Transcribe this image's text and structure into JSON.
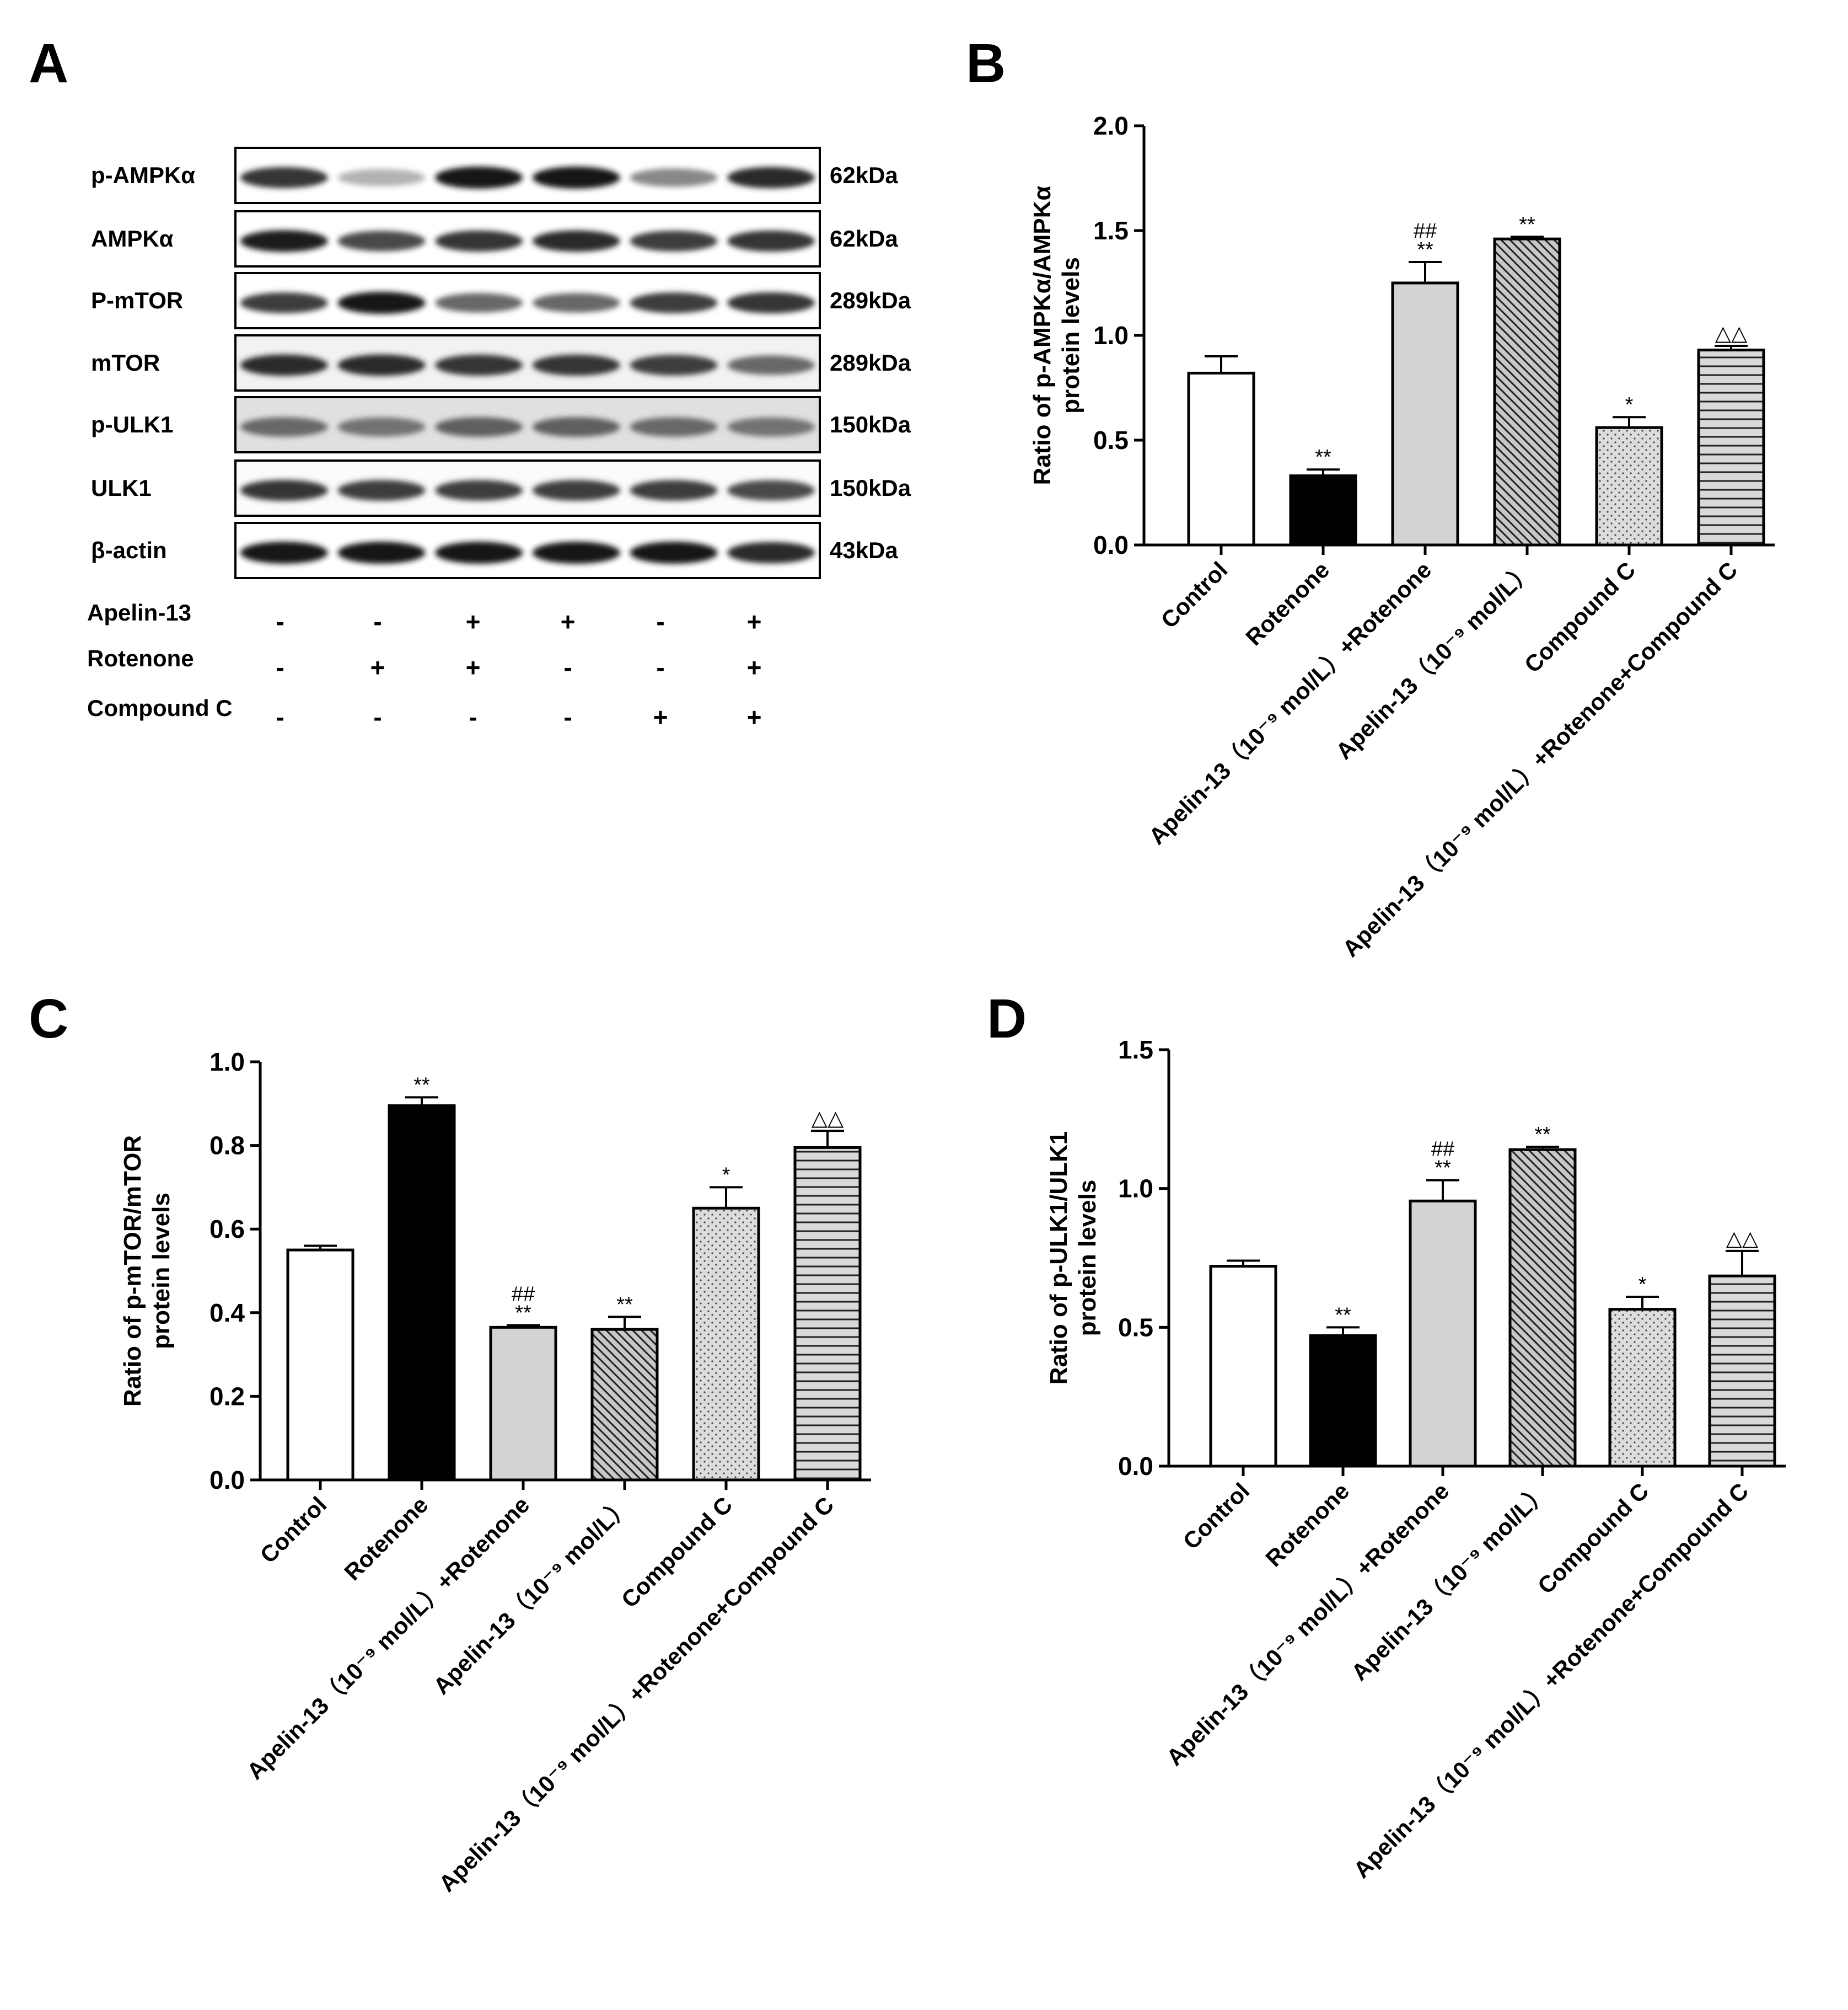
{
  "panels": {
    "a": "A",
    "b": "B",
    "c": "C",
    "d": "D"
  },
  "blot": {
    "rows": [
      {
        "label": "p-AMPKα",
        "size": "62kDa",
        "intensity": [
          0.85,
          0.25,
          1.0,
          1.0,
          0.45,
          0.9
        ],
        "bg": 0.0
      },
      {
        "label": "AMPKα",
        "size": "62kDa",
        "intensity": [
          0.95,
          0.75,
          0.85,
          0.9,
          0.8,
          0.85
        ],
        "bg": 0.0
      },
      {
        "label": "P-mTOR",
        "size": "289kDa",
        "intensity": [
          0.8,
          1.0,
          0.6,
          0.6,
          0.8,
          0.85
        ],
        "bg": 0.0
      },
      {
        "label": "mTOR",
        "size": "289kDa",
        "intensity": [
          0.9,
          0.9,
          0.85,
          0.85,
          0.8,
          0.6
        ],
        "bg": 0.15
      },
      {
        "label": "p-ULK1",
        "size": "150kDa",
        "intensity": [
          0.6,
          0.55,
          0.65,
          0.65,
          0.6,
          0.55
        ],
        "bg": 0.35
      },
      {
        "label": "ULK1",
        "size": "150kDa",
        "intensity": [
          0.85,
          0.8,
          0.8,
          0.8,
          0.8,
          0.75
        ],
        "bg": 0.05
      },
      {
        "label": "β-actin",
        "size": "43kDa",
        "intensity": [
          1.0,
          1.0,
          1.0,
          1.0,
          1.0,
          0.9
        ],
        "bg": 0.0
      }
    ],
    "conditions": [
      {
        "label": "Apelin-13",
        "signs": [
          "-",
          "-",
          "+",
          "+",
          "-",
          "+"
        ]
      },
      {
        "label": "Rotenone",
        "signs": [
          "-",
          "+",
          "+",
          "-",
          "-",
          "+"
        ]
      },
      {
        "label": "Compound C",
        "signs": [
          "-",
          "-",
          "-",
          "-",
          "+",
          "+"
        ]
      }
    ]
  },
  "chart_data": [
    {
      "id": "B",
      "type": "bar",
      "ylabel": [
        "Ratio of p-AMPKα/AMPKα",
        "protein levels"
      ],
      "ylim": [
        0,
        2.0
      ],
      "yticks": [
        "0.0",
        "0.5",
        "1.0",
        "1.5",
        "2.0"
      ],
      "categories": [
        "Control",
        "Rotenone",
        "Apelin-13（10⁻⁹ mol/L）+Rotenone",
        "Apelin-13（10⁻⁹ mol/L）",
        "Compound C",
        "Apelin-13（10⁻⁹ mol/L）+Rotenone+Compound C"
      ],
      "values": [
        0.82,
        0.33,
        1.25,
        1.46,
        0.56,
        0.93
      ],
      "errors": [
        0.08,
        0.03,
        0.1,
        0.01,
        0.05,
        0.02
      ],
      "marks": [
        [],
        [
          "**"
        ],
        [
          "##",
          "**"
        ],
        [
          "**"
        ],
        [
          "*"
        ],
        [
          "△△"
        ]
      ],
      "fills": [
        "white",
        "black",
        "gray",
        "hatch",
        "dots",
        "hlines"
      ]
    },
    {
      "id": "C",
      "type": "bar",
      "ylabel": [
        "Ratio of p-mTOR/mTOR",
        "protein levels"
      ],
      "ylim": [
        0,
        1.0
      ],
      "yticks": [
        "0.0",
        "0.2",
        "0.4",
        "0.6",
        "0.8",
        "1.0"
      ],
      "categories": [
        "Control",
        "Rotenone",
        "Apelin-13（10⁻⁹ mol/L）+Rotenone",
        "Apelin-13（10⁻⁹ mol/L）",
        "Compound C",
        "Apelin-13（10⁻⁹ mol/L）+Rotenone+Compound C"
      ],
      "values": [
        0.55,
        0.895,
        0.365,
        0.36,
        0.65,
        0.795
      ],
      "errors": [
        0.01,
        0.02,
        0.005,
        0.03,
        0.05,
        0.04
      ],
      "marks": [
        [],
        [
          "**"
        ],
        [
          "##",
          "**"
        ],
        [
          "**"
        ],
        [
          "*"
        ],
        [
          "△△"
        ]
      ],
      "fills": [
        "white",
        "black",
        "gray",
        "hatch",
        "dots",
        "hlines"
      ]
    },
    {
      "id": "D",
      "type": "bar",
      "ylabel": [
        "Ratio of p-ULK1/ULK1",
        "protein levels"
      ],
      "ylim": [
        0,
        1.5
      ],
      "yticks": [
        "0.0",
        "0.5",
        "1.0",
        "1.5"
      ],
      "categories": [
        "Control",
        "Rotenone",
        "Apelin-13（10⁻⁹ mol/L）+Rotenone",
        "Apelin-13（10⁻⁹ mol/L）",
        "Compound C",
        "Apelin-13（10⁻⁹ mol/L）+Rotenone+Compound C"
      ],
      "values": [
        0.72,
        0.47,
        0.955,
        1.14,
        0.565,
        0.685
      ],
      "errors": [
        0.02,
        0.03,
        0.075,
        0.01,
        0.045,
        0.09
      ],
      "marks": [
        [],
        [
          "**"
        ],
        [
          "##",
          "**"
        ],
        [
          "**"
        ],
        [
          "*"
        ],
        [
          "△△"
        ]
      ],
      "fills": [
        "white",
        "black",
        "gray",
        "hatch",
        "dots",
        "hlines"
      ]
    }
  ]
}
